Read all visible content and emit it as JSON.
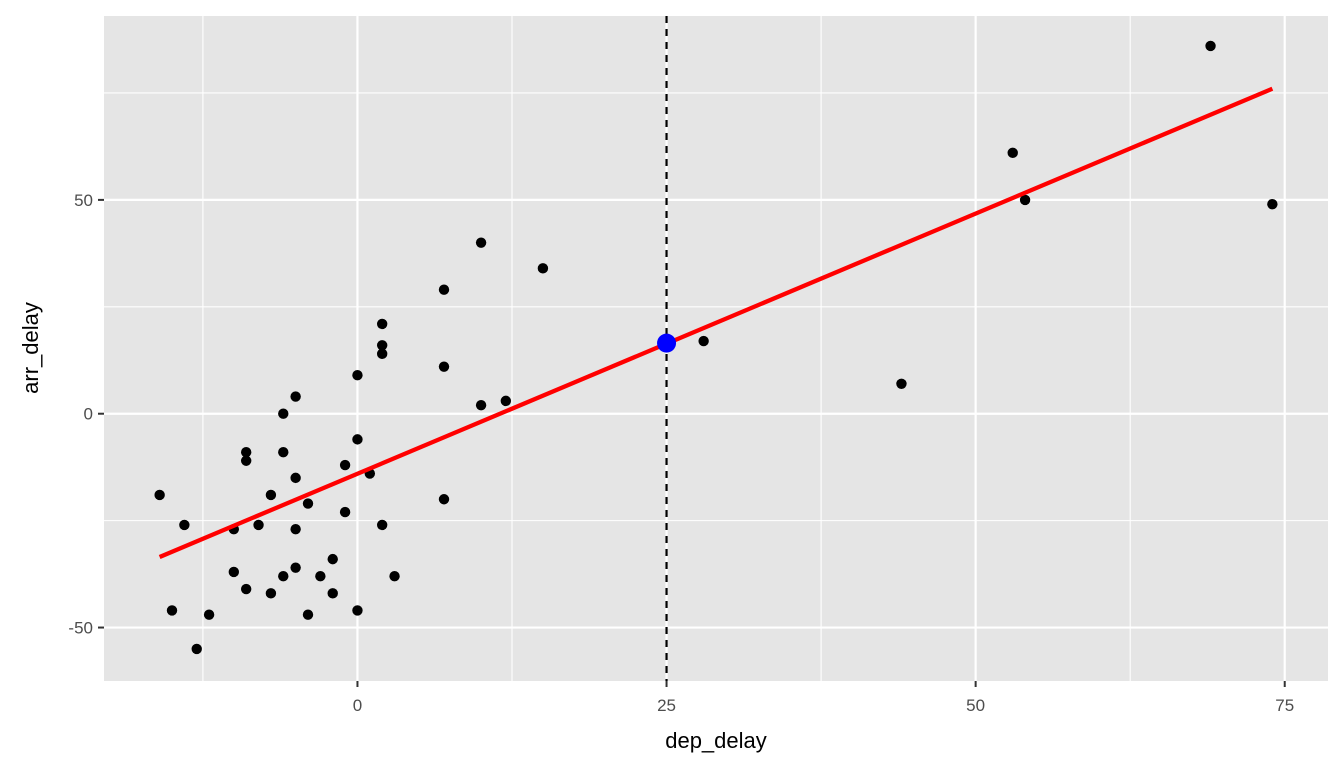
{
  "chart_data": {
    "type": "scatter",
    "xlabel": "dep_delay",
    "ylabel": "arr_delay",
    "xlim": [
      -20.5,
      78.5
    ],
    "ylim": [
      -62.5,
      93
    ],
    "x_ticks": [
      0,
      25,
      50,
      75
    ],
    "y_ticks": [
      -50,
      0,
      50
    ],
    "x_tick_labels": [
      "0",
      "25",
      "50",
      "75"
    ],
    "y_tick_labels": [
      "-50",
      "0",
      "50"
    ],
    "x_minor_ticks": [
      -12.5,
      12.5,
      37.5,
      62.5
    ],
    "y_minor_ticks": [
      -25,
      25,
      75
    ],
    "grid": true,
    "background": "#e5e5e5",
    "grid_color": "#ffffff",
    "points_color": "#000000",
    "points": [
      [
        -16,
        -19
      ],
      [
        -15,
        -46
      ],
      [
        -14,
        -26
      ],
      [
        -13,
        -55
      ],
      [
        -12,
        -47
      ],
      [
        -10,
        -27
      ],
      [
        -10,
        -37
      ],
      [
        -9,
        -9
      ],
      [
        -9,
        -11
      ],
      [
        -9,
        -41
      ],
      [
        -8,
        -26
      ],
      [
        -7,
        -19
      ],
      [
        -7,
        -42
      ],
      [
        -6,
        0
      ],
      [
        -6,
        -9
      ],
      [
        -6,
        -38
      ],
      [
        -5,
        4
      ],
      [
        -5,
        -15
      ],
      [
        -5,
        -27
      ],
      [
        -5,
        -36
      ],
      [
        -4,
        -21
      ],
      [
        -4,
        -47
      ],
      [
        -3,
        -38
      ],
      [
        -2,
        -34
      ],
      [
        -2,
        -42
      ],
      [
        -1,
        -12
      ],
      [
        -1,
        -23
      ],
      [
        0,
        9
      ],
      [
        0,
        -6
      ],
      [
        0,
        -46
      ],
      [
        1,
        -14
      ],
      [
        2,
        21
      ],
      [
        2,
        16
      ],
      [
        2,
        14
      ],
      [
        2,
        -26
      ],
      [
        3,
        -38
      ],
      [
        7,
        29
      ],
      [
        7,
        11
      ],
      [
        7,
        -20
      ],
      [
        10,
        40
      ],
      [
        10,
        2
      ],
      [
        12,
        3
      ],
      [
        15,
        34
      ],
      [
        28,
        17
      ],
      [
        44,
        7
      ],
      [
        53,
        61
      ],
      [
        54,
        50
      ],
      [
        69,
        86
      ],
      [
        74,
        49
      ]
    ],
    "fit_line": {
      "color": "#ff0000",
      "x": [
        -16,
        74
      ],
      "y": [
        -33.5,
        76
      ]
    },
    "reference_line": {
      "x": 25,
      "style": "dashed",
      "color": "#000000"
    },
    "highlight_point": {
      "x": 25,
      "y": 16.5,
      "color": "#0000ff"
    }
  }
}
